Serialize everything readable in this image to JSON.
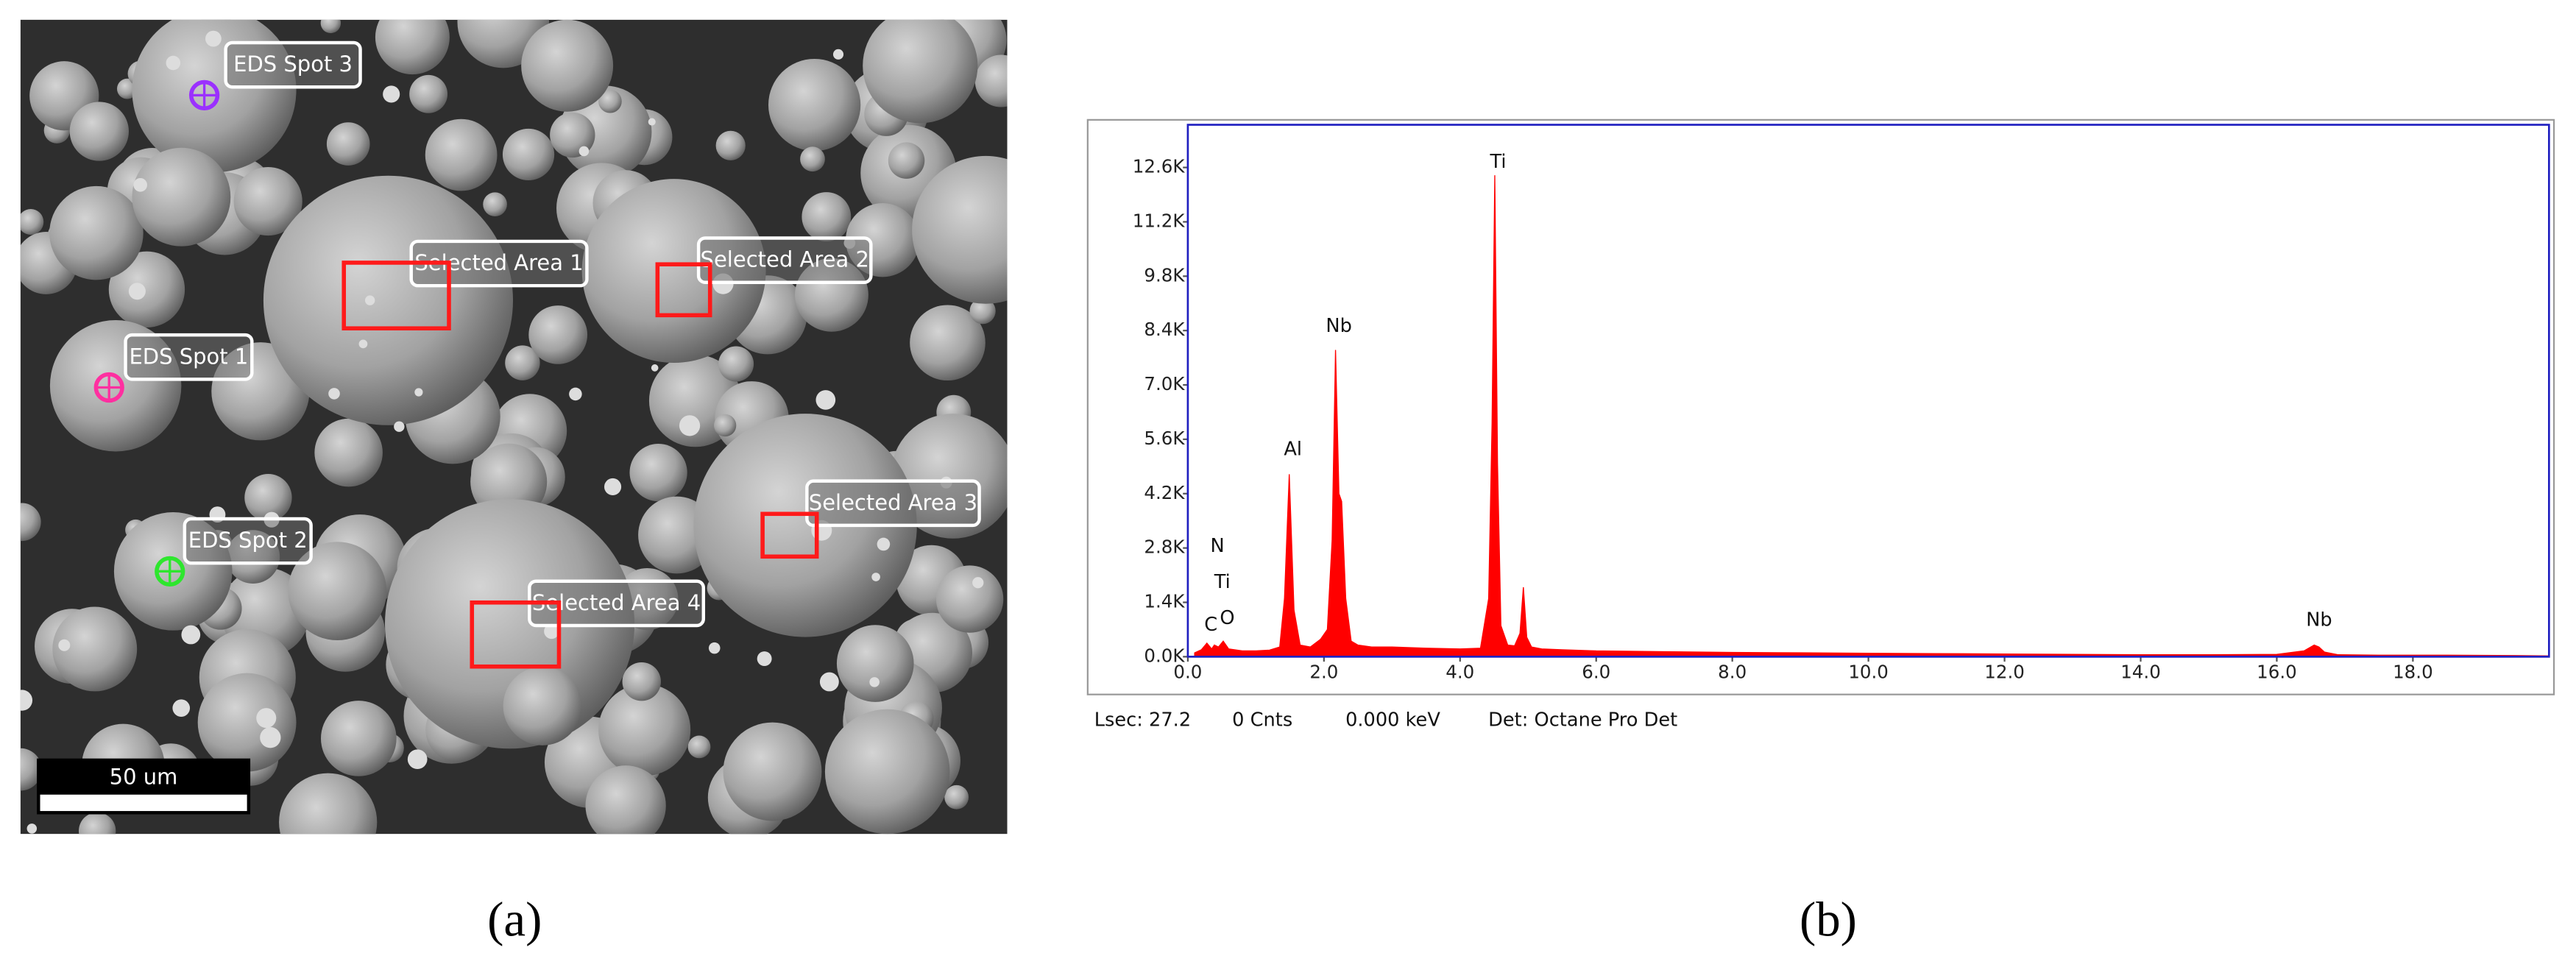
{
  "panel_a": {
    "labels": [
      "EDS Spot 3",
      "Selected Area 1",
      "Selected Area 2",
      "EDS Spot 1",
      "Selected Area 3",
      "EDS Spot 2",
      "Selected Area 4"
    ],
    "scale_bar": "50 um",
    "caption": "(a)"
  },
  "chart_data": {
    "type": "area",
    "color": "#ff0000",
    "xlim": [
      0,
      20
    ],
    "ylim": [
      0,
      13700
    ],
    "xticks": [
      {
        "value": 0,
        "label": "0.0"
      },
      {
        "value": 2,
        "label": "2.0"
      },
      {
        "value": 4,
        "label": "4.0"
      },
      {
        "value": 6,
        "label": "6.0"
      },
      {
        "value": 8,
        "label": "8.0"
      },
      {
        "value": 10,
        "label": "10.0"
      },
      {
        "value": 12,
        "label": "12.0"
      },
      {
        "value": 14,
        "label": "14.0"
      },
      {
        "value": 16,
        "label": "16.0"
      },
      {
        "value": 18,
        "label": "18.0"
      }
    ],
    "yticks": [
      {
        "value": 0,
        "label": "0.0K"
      },
      {
        "value": 1400,
        "label": "1.4K"
      },
      {
        "value": 2800,
        "label": "2.8K"
      },
      {
        "value": 4200,
        "label": "4.2K"
      },
      {
        "value": 5600,
        "label": "5.6K"
      },
      {
        "value": 7000,
        "label": "7.0K"
      },
      {
        "value": 8400,
        "label": "8.4K"
      },
      {
        "value": 9800,
        "label": "9.8K"
      },
      {
        "value": 11200,
        "label": "11.2K"
      },
      {
        "value": 12600,
        "label": "12.6K"
      }
    ],
    "x": [
      0.1,
      0.2,
      0.28,
      0.35,
      0.39,
      0.45,
      0.52,
      0.6,
      0.8,
      1.0,
      1.2,
      1.35,
      1.42,
      1.49,
      1.56,
      1.65,
      1.8,
      1.95,
      2.05,
      2.12,
      2.17,
      2.22,
      2.26,
      2.32,
      2.4,
      2.5,
      2.7,
      3.0,
      3.5,
      4.0,
      4.3,
      4.42,
      4.47,
      4.51,
      4.55,
      4.6,
      4.7,
      4.8,
      4.88,
      4.93,
      4.98,
      5.05,
      5.2,
      5.5,
      6,
      7,
      8,
      9,
      10,
      11,
      12,
      13,
      14,
      15,
      16,
      16.4,
      16.55,
      16.62,
      16.7,
      16.9,
      17.5,
      18.5,
      19.5,
      20
    ],
    "values": [
      100,
      180,
      350,
      200,
      300,
      250,
      400,
      200,
      150,
      150,
      170,
      250,
      1500,
      4700,
      1200,
      300,
      250,
      450,
      700,
      3000,
      7900,
      4200,
      4000,
      1500,
      400,
      300,
      250,
      250,
      220,
      200,
      220,
      1500,
      6000,
      12400,
      5000,
      800,
      300,
      280,
      600,
      1790,
      500,
      250,
      200,
      180,
      150,
      130,
      110,
      100,
      90,
      80,
      70,
      60,
      50,
      50,
      60,
      150,
      300,
      250,
      120,
      50,
      40,
      40,
      30,
      20
    ],
    "annotations": [
      "C",
      "O",
      "Ti",
      "N",
      "Al",
      "Nb",
      "Ti",
      "Nb"
    ],
    "footer": [
      "Lsec: 27.2",
      "0 Cnts",
      "0.000 keV",
      "Det: Octane Pro Det"
    ],
    "caption": "(b)"
  }
}
